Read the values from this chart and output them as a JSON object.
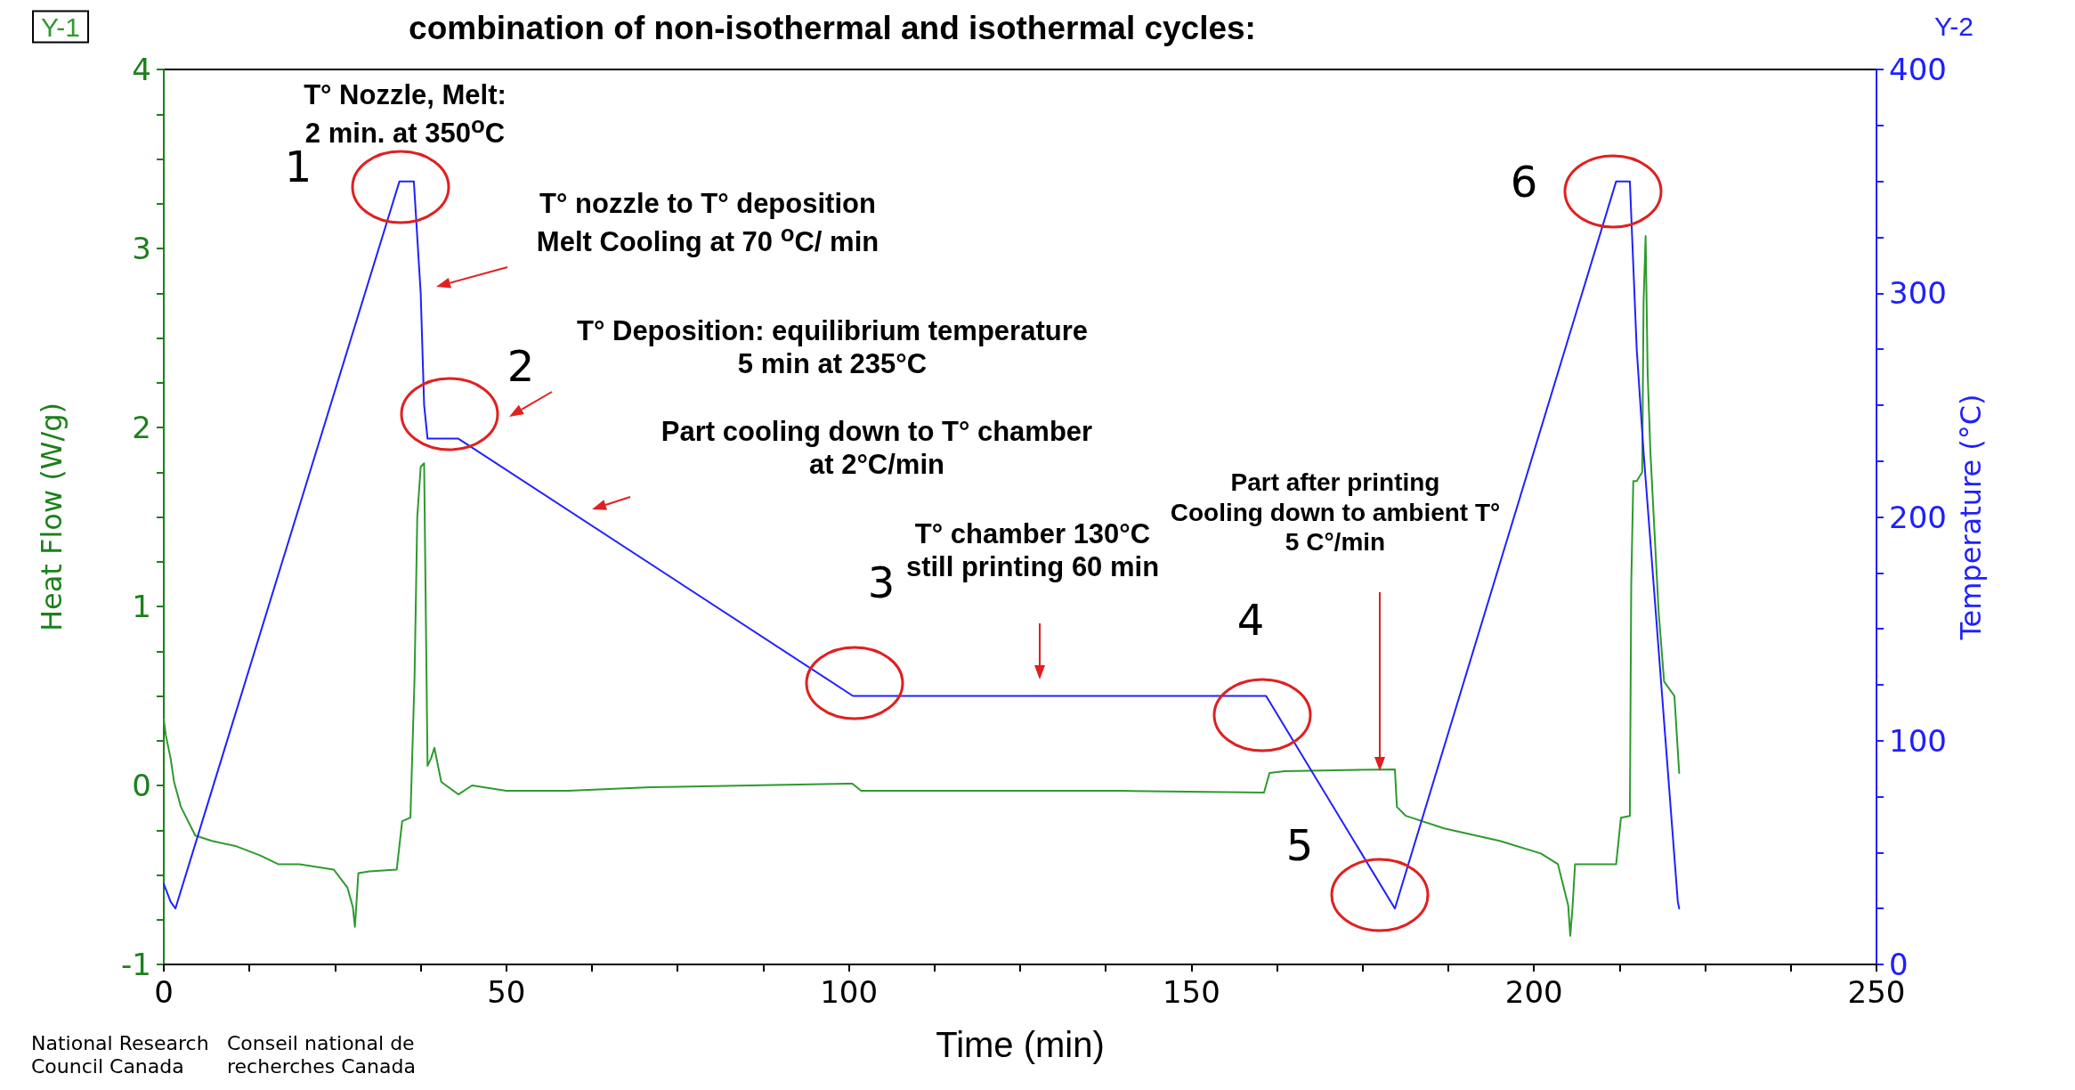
{
  "chart_data": {
    "type": "line",
    "title": "combination of non-isothermal and isothermal cycles:",
    "xlabel": "Time (min)",
    "ylabel": "Heat Flow (W/g)",
    "y2label": "Temperature (°C)",
    "xlim": [
      0,
      250
    ],
    "ylim": [
      -1,
      4
    ],
    "y2lim": [
      0,
      400
    ],
    "xticks": [
      0,
      {
        "value": 12.5,
        "label": null
      },
      {
        "value": 25,
        "label": null
      },
      {
        "value": 37.5,
        "label": null
      },
      50,
      {
        "value": 62.5,
        "label": null
      },
      {
        "value": 75,
        "label": null
      },
      {
        "value": 87.5,
        "label": null
      },
      100,
      {
        "value": 112.5,
        "label": null
      },
      {
        "value": 125,
        "label": null
      },
      {
        "value": 137.5,
        "label": null
      },
      150,
      {
        "value": 162.5,
        "label": null
      },
      {
        "value": 175,
        "label": null
      },
      {
        "value": 187.5,
        "label": null
      },
      200,
      {
        "value": 212.5,
        "label": null
      },
      {
        "value": 225,
        "label": null
      },
      {
        "value": 237.5,
        "label": null
      },
      250
    ],
    "yticks": [
      -1,
      {
        "value": -0.75,
        "label": null
      },
      {
        "value": -0.5,
        "label": null
      },
      {
        "value": -0.25,
        "label": null
      },
      0,
      {
        "value": 0.25,
        "label": null
      },
      {
        "value": 0.5,
        "label": null
      },
      {
        "value": 0.75,
        "label": null
      },
      1,
      {
        "value": 1.25,
        "label": null
      },
      {
        "value": 1.5,
        "label": null
      },
      {
        "value": 1.75,
        "label": null
      },
      2,
      {
        "value": 2.25,
        "label": null
      },
      {
        "value": 2.5,
        "label": null
      },
      {
        "value": 2.75,
        "label": null
      },
      3,
      {
        "value": 3.25,
        "label": null
      },
      {
        "value": 3.5,
        "label": null
      },
      {
        "value": 3.75,
        "label": null
      },
      4
    ],
    "y2ticks": [
      0,
      {
        "value": 25,
        "label": null
      },
      {
        "value": 50,
        "label": null
      },
      {
        "value": 75,
        "label": null
      },
      100,
      {
        "value": 125,
        "label": null
      },
      {
        "value": 150,
        "label": null
      },
      {
        "value": 175,
        "label": null
      },
      200,
      {
        "value": 225,
        "label": null
      },
      {
        "value": 250,
        "label": null
      },
      {
        "value": 275,
        "label": null
      },
      300,
      {
        "value": 325,
        "label": null
      },
      {
        "value": 350,
        "label": null
      },
      {
        "value": 375,
        "label": null
      },
      400
    ],
    "grid": false,
    "marker": "none",
    "line_style": "solid",
    "series": [
      {
        "color": "#2e9a2e",
        "x": [
          0,
          0.3,
          1,
          1.5,
          2.5,
          4.6,
          7,
          10.6,
          14,
          16.7,
          19.8,
          24.8,
          26.8,
          27.6,
          27.9,
          28.4,
          30,
          34,
          34.8,
          36,
          36.6,
          37,
          37.5,
          38,
          38.5,
          39,
          39.5,
          40.5,
          43,
          45,
          50,
          59,
          71,
          85.6,
          99.8,
          100.5,
          101.8,
          120,
          140,
          160.6,
          161.4,
          163.6,
          179.7,
          180,
          181.3,
          186.9,
          195,
          201,
          203.5,
          205,
          205.3,
          205.6,
          206,
          212,
          212.7,
          214,
          214.2,
          214.5,
          215,
          215.8,
          216,
          216.3,
          216.6,
          217,
          218.2,
          219,
          220.5,
          221.2
        ],
        "values": [
          0.37,
          0.28,
          0.15,
          0.02,
          -0.12,
          -0.28,
          -0.31,
          -0.34,
          -0.39,
          -0.44,
          -0.44,
          -0.47,
          -0.57,
          -0.68,
          -0.79,
          -0.49,
          -0.48,
          -0.47,
          -0.2,
          -0.18,
          0.6,
          1.5,
          1.78,
          1.8,
          0.11,
          0.15,
          0.21,
          0.02,
          -0.05,
          0,
          -0.03,
          -0.03,
          -0.01,
          0,
          0.01,
          0.01,
          -0.03,
          -0.03,
          -0.03,
          -0.04,
          0.07,
          0.08,
          0.09,
          -0.12,
          -0.17,
          -0.24,
          -0.31,
          -0.38,
          -0.44,
          -0.67,
          -0.84,
          -0.7,
          -0.44,
          -0.44,
          -0.18,
          -0.17,
          1.12,
          1.7,
          1.7,
          1.75,
          2.7,
          3.07,
          2.3,
          1.86,
          0.97,
          0.58,
          0.5,
          0.07
        ]
      },
      {
        "color": "#2020ff",
        "axis": "y2",
        "x": [
          0,
          1,
          1.7,
          34.4,
          36.5,
          37.5,
          38,
          38.5,
          43,
          100.6,
          160.9,
          179.7,
          212,
          214,
          215,
          216,
          221,
          221.2
        ],
        "values": [
          36,
          28,
          25,
          350,
          350,
          300,
          250,
          235,
          235,
          120,
          120,
          25,
          350,
          350,
          275,
          229,
          28,
          25
        ]
      }
    ],
    "annotations": [
      "Y-1",
      "Y-2",
      "T° Nozzle, Melt:\n2 min. at 350$^{o}$C",
      "T° nozzle to T° deposition\nMelt Cooling at 70 $^{o}$C/ min",
      "T° Deposition: equilibrium temperature\n5 min at 235°C",
      "Part cooling down to T° chamber\nat 2°C/min",
      "T° chamber 130°C\nstill printing 60 min",
      "Part after printing\nCooling down to ambient T°\n5 C°/min",
      "1",
      "2",
      "3",
      "4",
      "5",
      "6",
      "National Research\nCouncil Canada",
      "Conseil national de\nrecherches Canada"
    ]
  }
}
